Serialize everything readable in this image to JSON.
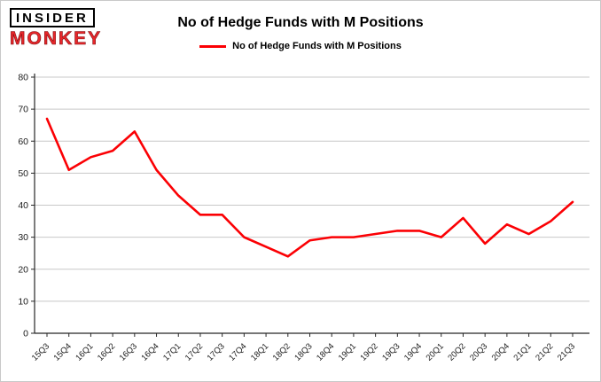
{
  "logo": {
    "line1": "INSIDER",
    "line2": "MONKEY"
  },
  "title": "No of Hedge Funds with M Positions",
  "legend": {
    "label": "No of Hedge Funds with M Positions",
    "color": "#fb0004"
  },
  "chart_data": {
    "type": "line",
    "title": "No of Hedge Funds with M Positions",
    "categories": [
      "15Q3",
      "15Q4",
      "16Q1",
      "16Q2",
      "16Q3",
      "16Q4",
      "17Q1",
      "17Q2",
      "17Q3",
      "17Q4",
      "18Q1",
      "18Q2",
      "18Q3",
      "18Q4",
      "19Q1",
      "19Q2",
      "19Q3",
      "19Q4",
      "20Q1",
      "20Q2",
      "20Q3",
      "20Q4",
      "21Q1",
      "21Q2",
      "21Q3"
    ],
    "values": [
      67,
      51,
      55,
      57,
      63,
      51,
      43,
      37,
      37,
      30,
      27,
      24,
      29,
      30,
      30,
      31,
      32,
      32,
      30,
      36,
      28,
      34,
      31,
      35,
      41
    ],
    "xlabel": "",
    "ylabel": "",
    "ylim": [
      0,
      80
    ],
    "yticks": [
      0,
      10,
      20,
      30,
      40,
      50,
      60,
      70,
      80
    ],
    "grid": true,
    "line_color": "#fb0004",
    "grid_color": "#c8c8c8",
    "axis_color": "#262626",
    "legend_position": "top-center"
  }
}
